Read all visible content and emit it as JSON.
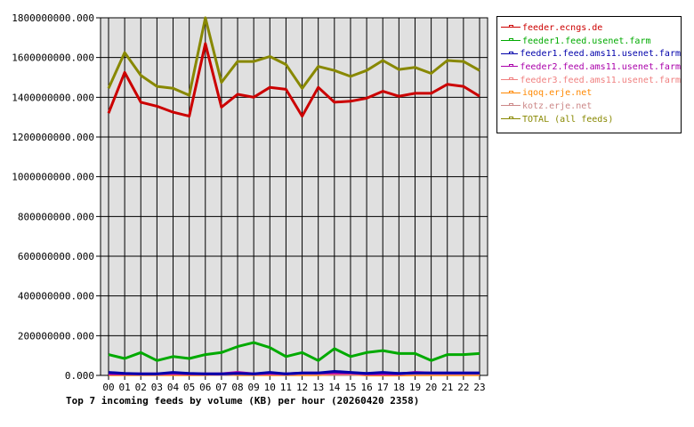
{
  "chart_data": {
    "type": "line",
    "title": "Top 7 incoming feeds by volume (KB) per hour (20260420 2358)",
    "xlabel": "",
    "ylabel": "",
    "ylim": [
      0,
      1800000000
    ],
    "yticks": [
      "0.000",
      "200000000.000",
      "400000000.000",
      "600000000.000",
      "800000000.000",
      "1000000000.000",
      "1200000000.000",
      "1400000000.000",
      "1600000000.000",
      "1800000000.000"
    ],
    "grid": true,
    "legend_position": "right",
    "x": [
      "00",
      "01",
      "02",
      "03",
      "04",
      "05",
      "06",
      "07",
      "08",
      "09",
      "10",
      "11",
      "12",
      "13",
      "14",
      "15",
      "16",
      "17",
      "18",
      "19",
      "20",
      "21",
      "22",
      "23"
    ],
    "series": [
      {
        "name": "feeder.ecngs.de",
        "color": "#cc0000",
        "values": [
          1320000000,
          1525000000,
          1375000000,
          1355000000,
          1325000000,
          1305000000,
          1670000000,
          1350000000,
          1415000000,
          1400000000,
          1450000000,
          1440000000,
          1305000000,
          1450000000,
          1375000000,
          1380000000,
          1395000000,
          1430000000,
          1405000000,
          1420000000,
          1420000000,
          1465000000,
          1455000000,
          1405000000
        ]
      },
      {
        "name": "feeder1.feed.usenet.farm",
        "color": "#00aa00",
        "values": [
          105000000,
          85000000,
          115000000,
          75000000,
          95000000,
          85000000,
          105000000,
          115000000,
          145000000,
          165000000,
          140000000,
          95000000,
          115000000,
          75000000,
          135000000,
          95000000,
          115000000,
          125000000,
          110000000,
          110000000,
          75000000,
          105000000,
          105000000,
          110000000
        ]
      },
      {
        "name": "feeder1.feed.ams11.usenet.farm",
        "color": "#0000aa",
        "values": [
          15000000,
          10000000,
          8000000,
          8000000,
          15000000,
          10000000,
          8000000,
          8000000,
          10000000,
          8000000,
          15000000,
          8000000,
          12000000,
          12000000,
          20000000,
          15000000,
          10000000,
          15000000,
          10000000,
          12000000,
          12000000,
          12000000,
          12000000,
          12000000
        ]
      },
      {
        "name": "feeder2.feed.ams11.usenet.farm",
        "color": "#aa00aa",
        "values": [
          8000000,
          8000000,
          8000000,
          8000000,
          10000000,
          8000000,
          8000000,
          8000000,
          15000000,
          8000000,
          10000000,
          8000000,
          12000000,
          12000000,
          12000000,
          12000000,
          8000000,
          8000000,
          8000000,
          15000000,
          12000000,
          12000000,
          12000000,
          12000000
        ]
      },
      {
        "name": "feeder3.feed.ams11.usenet.farm",
        "color": "#f08080",
        "values": [
          8000000,
          8000000,
          6000000,
          6000000,
          8000000,
          8000000,
          6000000,
          6000000,
          8000000,
          6000000,
          8000000,
          6000000,
          8000000,
          8000000,
          8000000,
          8000000,
          6000000,
          6000000,
          6000000,
          8000000,
          8000000,
          8000000,
          8000000,
          8000000
        ]
      },
      {
        "name": "iqoq.erje.net",
        "color": "#ff8800",
        "values": [
          3000000,
          3000000,
          3000000,
          3000000,
          3000000,
          3000000,
          3000000,
          8000000,
          3000000,
          3000000,
          3000000,
          3000000,
          3000000,
          3000000,
          8000000,
          8000000,
          2000000,
          2000000,
          2000000,
          3000000,
          3000000,
          3000000,
          3000000,
          3000000
        ]
      },
      {
        "name": "kotz.erje.net",
        "color": "#cc8888",
        "values": [
          5000000,
          5000000,
          5000000,
          5000000,
          5000000,
          5000000,
          5000000,
          5000000,
          5000000,
          5000000,
          5000000,
          5000000,
          5000000,
          5000000,
          5000000,
          5000000,
          5000000,
          5000000,
          5000000,
          5000000,
          5000000,
          5000000,
          5000000,
          5000000
        ]
      },
      {
        "name": "TOTAL (all feeds)",
        "color": "#888800",
        "values": [
          1445000000,
          1625000000,
          1510000000,
          1455000000,
          1445000000,
          1410000000,
          1800000000,
          1475000000,
          1580000000,
          1580000000,
          1605000000,
          1565000000,
          1445000000,
          1555000000,
          1535000000,
          1505000000,
          1535000000,
          1585000000,
          1540000000,
          1550000000,
          1520000000,
          1585000000,
          1580000000,
          1535000000
        ]
      }
    ]
  },
  "caption": "Top 7 incoming feeds by volume (KB) per hour (20260420 2358)",
  "legend": [
    {
      "label": "feeder.ecngs.de",
      "color": "#cc0000"
    },
    {
      "label": "feeder1.feed.usenet.farm",
      "color": "#00aa00"
    },
    {
      "label": "feeder1.feed.ams11.usenet.farm",
      "color": "#0000aa"
    },
    {
      "label": "feeder2.feed.ams11.usenet.farm",
      "color": "#aa00aa"
    },
    {
      "label": "feeder3.feed.ams11.usenet.farm",
      "color": "#f08080"
    },
    {
      "label": "iqoq.erje.net",
      "color": "#ff8800"
    },
    {
      "label": "kotz.erje.net",
      "color": "#cc8888"
    },
    {
      "label": "TOTAL (all feeds)",
      "color": "#888800"
    }
  ]
}
